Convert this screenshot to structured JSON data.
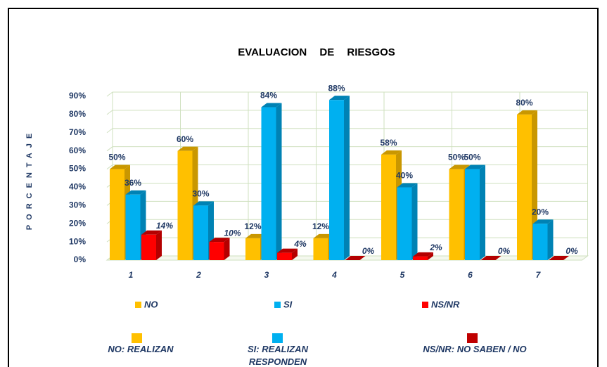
{
  "chart_data": {
    "type": "bar3d",
    "title": "EVALUACION DE RIESGOS",
    "y_label": "PORCENTAJE",
    "categories": [
      "1",
      "2",
      "3",
      "4",
      "5",
      "6",
      "7"
    ],
    "series": [
      {
        "name": "NO",
        "color": "#FFC000",
        "side": "#C99700",
        "values": [
          50,
          60,
          12,
          12,
          58,
          50,
          80
        ],
        "value_labels": [
          "50%",
          "60%",
          "12%",
          "12%",
          "58%",
          "50%",
          "80%"
        ]
      },
      {
        "name": "SI",
        "color": "#00B0F0",
        "side": "#0082B4",
        "values": [
          36,
          30,
          84,
          88,
          40,
          50,
          20
        ],
        "value_labels": [
          "36%",
          "30%",
          "84%",
          "88%",
          "40%",
          "50%",
          "20%"
        ]
      },
      {
        "name": "NS/NR",
        "color": "#FF0000",
        "side": "#B40000",
        "values": [
          14,
          10,
          4,
          0,
          2,
          0,
          0
        ],
        "value_labels": [
          "14%",
          "10%",
          "4%",
          "0%",
          "2%",
          "0%",
          "0%"
        ]
      }
    ],
    "ylim": [
      0,
      90
    ],
    "yticks": [
      {
        "value": 0,
        "label": "0%"
      },
      {
        "value": 10,
        "label": "10%"
      },
      {
        "value": 20,
        "label": "20%"
      },
      {
        "value": 30,
        "label": "30%"
      },
      {
        "value": 40,
        "label": "40%"
      },
      {
        "value": 50,
        "label": "50%"
      },
      {
        "value": 60,
        "label": "60%"
      },
      {
        "value": 70,
        "label": "70%"
      },
      {
        "value": 80,
        "label": "80%"
      },
      {
        "value": 90,
        "label": "90%"
      }
    ],
    "grid": true,
    "notes": [
      {
        "text": "NO: REALIZAN",
        "color": "#FFC000"
      },
      {
        "text": "SI: REALIZAN RESPONDEN",
        "color": "#00B0F0"
      },
      {
        "text": "NS/NR: NO SABEN / NO",
        "color": "#C00000"
      }
    ]
  }
}
